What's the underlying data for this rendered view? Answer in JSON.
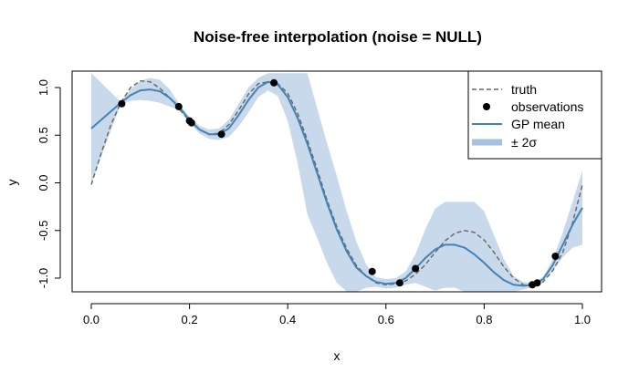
{
  "chart_data": {
    "type": "line",
    "title": "Noise-free interpolation  (noise = NULL)",
    "xlabel": "x",
    "ylabel": "y",
    "xlim": [
      0,
      1
    ],
    "ylim": [
      -1.1,
      1.15
    ],
    "xticks": [
      0.0,
      0.2,
      0.4,
      0.6,
      0.8,
      1.0
    ],
    "xtick_labels": [
      "0.0",
      "0.2",
      "0.4",
      "0.6",
      "0.8",
      "1.0"
    ],
    "yticks": [
      -1.0,
      -0.5,
      0.0,
      0.5,
      1.0
    ],
    "ytick_labels": [
      "-1.0",
      "-0.5",
      "0.0",
      "0.5",
      "1.0"
    ],
    "legend_position": "top-right",
    "series": [
      {
        "name": "truth",
        "style": "dashed",
        "color": "#666666",
        "x": [
          0.0,
          0.02,
          0.04,
          0.06,
          0.08,
          0.1,
          0.12,
          0.14,
          0.16,
          0.18,
          0.2,
          0.22,
          0.24,
          0.26,
          0.28,
          0.3,
          0.32,
          0.34,
          0.36,
          0.38,
          0.4,
          0.42,
          0.44,
          0.46,
          0.48,
          0.5,
          0.52,
          0.54,
          0.56,
          0.58,
          0.6,
          0.62,
          0.64,
          0.66,
          0.68,
          0.7,
          0.72,
          0.74,
          0.76,
          0.78,
          0.8,
          0.82,
          0.84,
          0.86,
          0.88,
          0.9,
          0.92,
          0.94,
          0.96,
          0.98,
          1.0
        ],
        "y": [
          -0.02,
          0.31,
          0.61,
          0.84,
          1.0,
          1.07,
          1.06,
          0.99,
          0.89,
          0.77,
          0.65,
          0.56,
          0.51,
          0.52,
          0.61,
          0.76,
          0.93,
          1.04,
          1.06,
          1.04,
          0.94,
          0.73,
          0.45,
          0.14,
          -0.18,
          -0.46,
          -0.69,
          -0.87,
          -0.98,
          -1.05,
          -1.07,
          -1.06,
          -1.03,
          -0.96,
          -0.86,
          -0.73,
          -0.61,
          -0.53,
          -0.5,
          -0.52,
          -0.6,
          -0.73,
          -0.88,
          -1.0,
          -1.07,
          -1.08,
          -1.04,
          -0.92,
          -0.73,
          -0.42,
          -0.02
        ]
      },
      {
        "name": "observations",
        "style": "points",
        "color": "#000000",
        "x": [
          0.062,
          0.178,
          0.2,
          0.204,
          0.265,
          0.372,
          0.572,
          0.628,
          0.66,
          0.898,
          0.908,
          0.945
        ],
        "y": [
          0.83,
          0.8,
          0.65,
          0.63,
          0.51,
          1.05,
          -0.93,
          -1.05,
          -0.9,
          -1.07,
          -1.05,
          -0.77
        ]
      },
      {
        "name": "GP mean",
        "style": "solid",
        "color": "#4682b4",
        "x": [
          0.0,
          0.02,
          0.04,
          0.06,
          0.08,
          0.1,
          0.12,
          0.14,
          0.16,
          0.18,
          0.2,
          0.22,
          0.24,
          0.26,
          0.28,
          0.3,
          0.32,
          0.34,
          0.36,
          0.38,
          0.4,
          0.42,
          0.44,
          0.46,
          0.48,
          0.5,
          0.52,
          0.54,
          0.56,
          0.58,
          0.6,
          0.62,
          0.64,
          0.66,
          0.68,
          0.7,
          0.72,
          0.74,
          0.76,
          0.78,
          0.8,
          0.82,
          0.84,
          0.86,
          0.88,
          0.9,
          0.92,
          0.94,
          0.96,
          0.98,
          1.0
        ],
        "y": [
          0.57,
          0.66,
          0.75,
          0.84,
          0.92,
          0.97,
          0.98,
          0.96,
          0.89,
          0.79,
          0.66,
          0.56,
          0.51,
          0.51,
          0.57,
          0.71,
          0.87,
          1.0,
          1.06,
          1.03,
          0.9,
          0.68,
          0.41,
          0.1,
          -0.21,
          -0.49,
          -0.72,
          -0.89,
          -0.98,
          -1.04,
          -1.06,
          -1.05,
          -1.0,
          -0.9,
          -0.79,
          -0.7,
          -0.65,
          -0.65,
          -0.68,
          -0.75,
          -0.84,
          -0.94,
          -1.02,
          -1.07,
          -1.08,
          -1.07,
          -1.01,
          -0.86,
          -0.65,
          -0.44,
          -0.26
        ]
      },
      {
        "name": "± 2σ",
        "style": "band",
        "color": "#c7d9ea",
        "x": [
          0.0,
          0.02,
          0.04,
          0.06,
          0.08,
          0.1,
          0.12,
          0.14,
          0.16,
          0.18,
          0.2,
          0.22,
          0.24,
          0.26,
          0.28,
          0.3,
          0.32,
          0.34,
          0.36,
          0.38,
          0.4,
          0.42,
          0.44,
          0.46,
          0.48,
          0.5,
          0.52,
          0.54,
          0.56,
          0.58,
          0.6,
          0.62,
          0.64,
          0.66,
          0.68,
          0.7,
          0.72,
          0.74,
          0.76,
          0.78,
          0.8,
          0.82,
          0.84,
          0.86,
          0.88,
          0.9,
          0.92,
          0.94,
          0.96,
          0.98,
          1.0
        ],
        "upper": [
          1.15,
          1.05,
          0.95,
          0.85,
          0.98,
          1.07,
          1.1,
          1.08,
          0.98,
          0.82,
          0.69,
          0.6,
          0.56,
          0.57,
          0.66,
          0.83,
          1.0,
          1.1,
          1.15,
          1.15,
          1.15,
          1.15,
          1.15,
          0.78,
          0.42,
          0.07,
          -0.3,
          -0.62,
          -0.86,
          -0.99,
          -1.01,
          -1.0,
          -0.93,
          -0.75,
          -0.49,
          -0.27,
          -0.2,
          -0.2,
          -0.2,
          -0.2,
          -0.3,
          -0.55,
          -0.8,
          -0.98,
          -1.04,
          -1.05,
          -0.99,
          -0.8,
          -0.52,
          -0.2,
          0.13
        ]
      }
    ]
  },
  "legend": {
    "items": [
      "truth",
      "observations",
      "GP mean",
      "± 2σ"
    ]
  }
}
